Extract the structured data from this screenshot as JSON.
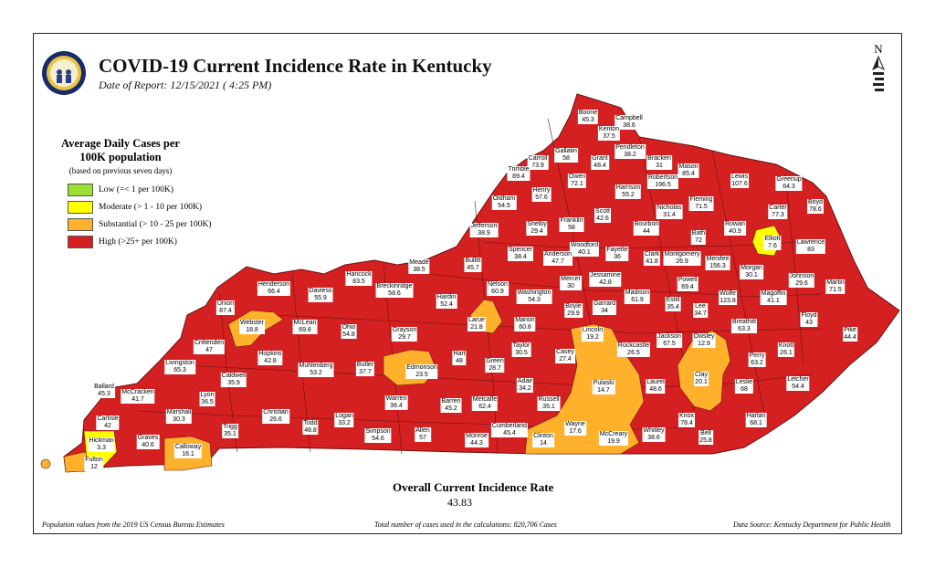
{
  "header": {
    "title": "COVID-19 Current Incidence Rate in Kentucky",
    "date": "Date of Report: 12/15/2021 ( 4:25 PM)"
  },
  "north_label": "N",
  "legend": {
    "title": "Average Daily Cases per 100K population",
    "note": "(based on previous seven days)",
    "items": [
      {
        "label": "Low (=< 1 per 100K)",
        "color": "#99e033"
      },
      {
        "label": "Moderate (> 1 - 10 per 100K)",
        "color": "#ffff00"
      },
      {
        "label": "Substantial (> 10 - 25 per 100K)",
        "color": "#ffb12b"
      },
      {
        "label": "High (>25+ per 100K)",
        "color": "#d42020"
      }
    ]
  },
  "overall": {
    "title": "Overall Current Incidence Rate",
    "value": "43.83"
  },
  "footer": {
    "left": "Population values from the 2019 US Census Bureau Estimates",
    "center": "Total number of cases used in the calculations: 820,706 Cases",
    "right": "Data Source: Kentucky Department for Public Health"
  },
  "colors": {
    "high": "#d42020",
    "substantial": "#ffb12b",
    "moderate": "#ffff00",
    "border": "#6e1010"
  },
  "counties": [
    {
      "n": "Boone",
      "v": "45.3"
    },
    {
      "n": "Campbell",
      "v": "38.6"
    },
    {
      "n": "Kenton",
      "v": "37.5"
    },
    {
      "n": "Gallatin",
      "v": "58"
    },
    {
      "n": "Pendleton",
      "v": "38.2"
    },
    {
      "n": "Carroll",
      "v": "73.9"
    },
    {
      "n": "Grant",
      "v": "48.4"
    },
    {
      "n": "Bracken",
      "v": "31"
    },
    {
      "n": "Trimble",
      "v": "89.4"
    },
    {
      "n": "Mason",
      "v": "85.4"
    },
    {
      "n": "Lewis",
      "v": "107.6"
    },
    {
      "n": "Greenup",
      "v": "64.3"
    },
    {
      "n": "Owen",
      "v": "72.1"
    },
    {
      "n": "Robertson",
      "v": "196.5"
    },
    {
      "n": "Harrison",
      "v": "55.2"
    },
    {
      "n": "Henry",
      "v": "57.6"
    },
    {
      "n": "Oldham",
      "v": "54.5"
    },
    {
      "n": "Fleming",
      "v": "71.5"
    },
    {
      "n": "Nicholas",
      "v": "31.4"
    },
    {
      "n": "Carter",
      "v": "77.3"
    },
    {
      "n": "Boyd",
      "v": "78.6"
    },
    {
      "n": "Scott",
      "v": "42.6"
    },
    {
      "n": "Franklin",
      "v": "58"
    },
    {
      "n": "Shelby",
      "v": "29.4"
    },
    {
      "n": "Jefferson",
      "v": "38.9"
    },
    {
      "n": "Bourbon",
      "v": "44"
    },
    {
      "n": "Rowan",
      "v": "40.9"
    },
    {
      "n": "Bath",
      "v": "72"
    },
    {
      "n": "Elliott",
      "v": "7.6"
    },
    {
      "n": "Lawrence",
      "v": "83"
    },
    {
      "n": "Woodford",
      "v": "40.1"
    },
    {
      "n": "Fayette",
      "v": "36"
    },
    {
      "n": "Anderson",
      "v": "47.7"
    },
    {
      "n": "Spencer",
      "v": "38.4"
    },
    {
      "n": "Clark",
      "v": "41.8"
    },
    {
      "n": "Montgomery",
      "v": "26.9"
    },
    {
      "n": "Menifee",
      "v": "156.3"
    },
    {
      "n": "Morgan",
      "v": "30.1"
    },
    {
      "n": "Johnson",
      "v": "29.6"
    },
    {
      "n": "Martin",
      "v": "71.5"
    },
    {
      "n": "Meade",
      "v": "38.5"
    },
    {
      "n": "Bullitt",
      "v": "45.7"
    },
    {
      "n": "Hancock",
      "v": "83.5"
    },
    {
      "n": "Henderson",
      "v": "66.4"
    },
    {
      "n": "Daviess",
      "v": "55.9"
    },
    {
      "n": "Breckinridge",
      "v": "58.6"
    },
    {
      "n": "Jessamine",
      "v": "42.8"
    },
    {
      "n": "Mercer",
      "v": "30"
    },
    {
      "n": "Nelson",
      "v": "60.9"
    },
    {
      "n": "Washington",
      "v": "54.3"
    },
    {
      "n": "Hardin",
      "v": "52.4"
    },
    {
      "n": "Powell",
      "v": "69.4"
    },
    {
      "n": "Wolfe",
      "v": "123.8"
    },
    {
      "n": "Magoffin",
      "v": "41.1"
    },
    {
      "n": "Floyd",
      "v": "43"
    },
    {
      "n": "Madison",
      "v": "61.9"
    },
    {
      "n": "Estill",
      "v": "35.4"
    },
    {
      "n": "Garrard",
      "v": "34"
    },
    {
      "n": "Boyle",
      "v": "29.9"
    },
    {
      "n": "Union",
      "v": "87.4"
    },
    {
      "n": "Lee",
      "v": "34.7"
    },
    {
      "n": "Breathitt",
      "v": "63.3"
    },
    {
      "n": "Webster",
      "v": "18.8"
    },
    {
      "n": "McLean",
      "v": "69.8"
    },
    {
      "n": "Ohio",
      "v": "54.8"
    },
    {
      "n": "Larue",
      "v": "21.8"
    },
    {
      "n": "Marion",
      "v": "60.8"
    },
    {
      "n": "Lincoln",
      "v": "19.2"
    },
    {
      "n": "Pike",
      "v": "44.4"
    },
    {
      "n": "Jackson",
      "v": "67.5"
    },
    {
      "n": "Owsley",
      "v": "12.9"
    },
    {
      "n": "Crittenden",
      "v": "47"
    },
    {
      "n": "Grayson",
      "v": "29.7"
    },
    {
      "n": "Taylor",
      "v": "30.5"
    },
    {
      "n": "Knott",
      "v": "26.1"
    },
    {
      "n": "Rockcastle",
      "v": "26.5"
    },
    {
      "n": "Hopkins",
      "v": "42.8"
    },
    {
      "n": "Casey",
      "v": "27.4"
    },
    {
      "n": "Perry",
      "v": "63.2"
    },
    {
      "n": "Hart",
      "v": "48"
    },
    {
      "n": "Livingston",
      "v": "65.3"
    },
    {
      "n": "Muhlenberg",
      "v": "53.2"
    },
    {
      "n": "Butler",
      "v": "37.7"
    },
    {
      "n": "Green",
      "v": "28.7"
    },
    {
      "n": "Edmonson",
      "v": "23.5"
    },
    {
      "n": "Caldwell",
      "v": "35.9"
    },
    {
      "n": "Laurel",
      "v": "48.6"
    },
    {
      "n": "Clay",
      "v": "20.1"
    },
    {
      "n": "Leslie",
      "v": "68"
    },
    {
      "n": "Letcher",
      "v": "54.4"
    },
    {
      "n": "Ballard",
      "v": "45.3"
    },
    {
      "n": "McCracken",
      "v": "41.7"
    },
    {
      "n": "Lyon",
      "v": "36.5"
    },
    {
      "n": "Adair",
      "v": "34.2"
    },
    {
      "n": "Pulaski",
      "v": "14.7"
    },
    {
      "n": "Warren",
      "v": "36.4"
    },
    {
      "n": "Russell",
      "v": "35.1"
    },
    {
      "n": "Barren",
      "v": "45.2"
    },
    {
      "n": "Metcalfe",
      "v": "62.4"
    },
    {
      "n": "Carlisle",
      "v": "42"
    },
    {
      "n": "Marshall",
      "v": "30.3"
    },
    {
      "n": "Christian",
      "v": "26.6"
    },
    {
      "n": "Knox",
      "v": "78.4"
    },
    {
      "n": "Harlan",
      "v": "68.1"
    },
    {
      "n": "Logan",
      "v": "33.2"
    },
    {
      "n": "Todd",
      "v": "48.8"
    },
    {
      "n": "Trigg",
      "v": "35.1"
    },
    {
      "n": "Cumberland",
      "v": "45.4"
    },
    {
      "n": "Wayne",
      "v": "17.6"
    },
    {
      "n": "Whitley",
      "v": "38.6"
    },
    {
      "n": "Bell",
      "v": "25.8"
    },
    {
      "n": "Simpson",
      "v": "54.6"
    },
    {
      "n": "Allen",
      "v": "57"
    },
    {
      "n": "Monroe",
      "v": "44.3"
    },
    {
      "n": "Clinton",
      "v": "14"
    },
    {
      "n": "McCreary",
      "v": "19.9"
    },
    {
      "n": "Hickman",
      "v": "3.3"
    },
    {
      "n": "Graves",
      "v": "40.6"
    },
    {
      "n": "Calloway",
      "v": "16.1"
    },
    {
      "n": "Fulton",
      "v": "12"
    }
  ]
}
